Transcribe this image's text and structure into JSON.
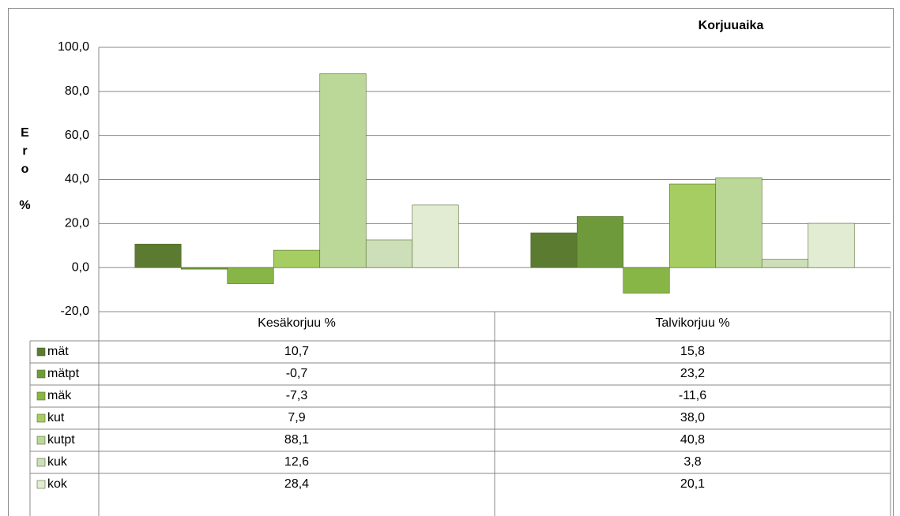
{
  "chart_data": {
    "type": "bar",
    "title": "Korjuuaika",
    "y_label": "Ero %",
    "categories": [
      "Kesäkorjuu %",
      "Talvikorjuu %"
    ],
    "series": [
      {
        "name": "mät",
        "color": "#5b7b30",
        "values": [
          10.7,
          15.8
        ],
        "value_labels": [
          "10,7",
          "15,8"
        ]
      },
      {
        "name": "mätpt",
        "color": "#6f9a3c",
        "values": [
          -0.7,
          23.2
        ],
        "value_labels": [
          "-0,7",
          "23,2"
        ]
      },
      {
        "name": "mäk",
        "color": "#88b646",
        "values": [
          -7.3,
          -11.6
        ],
        "value_labels": [
          "-7,3",
          "-11,6"
        ]
      },
      {
        "name": "kut",
        "color": "#a6cd62",
        "values": [
          7.9,
          38.0
        ],
        "value_labels": [
          "7,9",
          "38,0"
        ]
      },
      {
        "name": "kutpt",
        "color": "#bcd898",
        "values": [
          88.1,
          40.8
        ],
        "value_labels": [
          "88,1",
          "40,8"
        ]
      },
      {
        "name": "kuk",
        "color": "#cddfb8",
        "values": [
          12.6,
          3.8
        ],
        "value_labels": [
          "12,6",
          "3,8"
        ]
      },
      {
        "name": "kok",
        "color": "#e1ecd3",
        "values": [
          28.4,
          20.1
        ],
        "value_labels": [
          "28,4",
          "20,1"
        ]
      }
    ],
    "ylim": [
      -20,
      100
    ],
    "yticks": [
      {
        "value": -20,
        "label": "-20,0"
      },
      {
        "value": 0,
        "label": "0,0"
      },
      {
        "value": 20,
        "label": "20,0"
      },
      {
        "value": 40,
        "label": "40,0"
      },
      {
        "value": 60,
        "label": "60,0"
      },
      {
        "value": 80,
        "label": "80,0"
      },
      {
        "value": 100,
        "label": "100,0"
      }
    ],
    "grid": true
  }
}
